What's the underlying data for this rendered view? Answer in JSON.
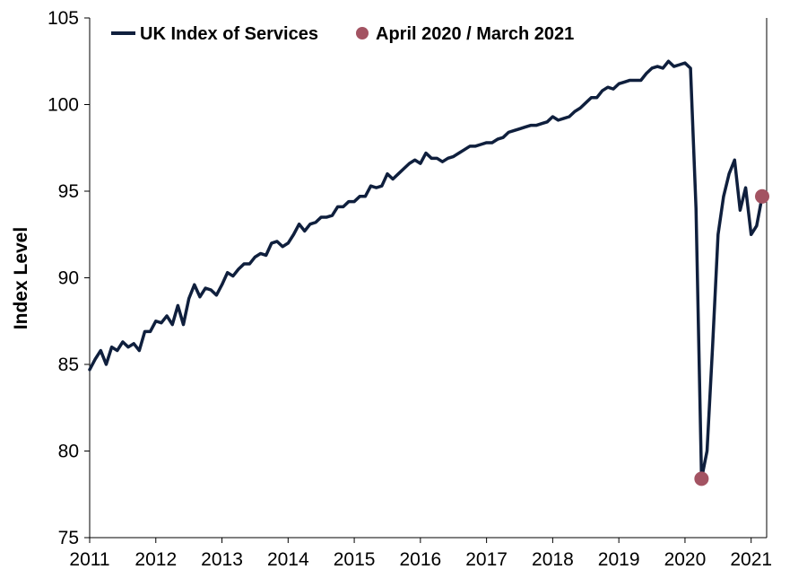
{
  "chart_data": {
    "type": "line",
    "title": "",
    "xlabel": "",
    "ylabel": "Index Level",
    "ylim": [
      75,
      105
    ],
    "yticks": [
      "75",
      "80",
      "85",
      "90",
      "95",
      "100",
      "105"
    ],
    "xticks": [
      "2011",
      "2012",
      "2013",
      "2014",
      "2015",
      "2016",
      "2017",
      "2018",
      "2019",
      "2020",
      "2021"
    ],
    "xlim": [
      "2011-01",
      "2021-03"
    ],
    "grid": false,
    "legend_position": "top",
    "colors": {
      "line": "#0f1f3d",
      "marker": "#a35362",
      "axis": "#000000"
    },
    "series": [
      {
        "name": "UK Index of Services",
        "x": [
          "2011-01",
          "2011-02",
          "2011-03",
          "2011-04",
          "2011-05",
          "2011-06",
          "2011-07",
          "2011-08",
          "2011-09",
          "2011-10",
          "2011-11",
          "2011-12",
          "2012-01",
          "2012-02",
          "2012-03",
          "2012-04",
          "2012-05",
          "2012-06",
          "2012-07",
          "2012-08",
          "2012-09",
          "2012-10",
          "2012-11",
          "2012-12",
          "2013-01",
          "2013-02",
          "2013-03",
          "2013-04",
          "2013-05",
          "2013-06",
          "2013-07",
          "2013-08",
          "2013-09",
          "2013-10",
          "2013-11",
          "2013-12",
          "2014-01",
          "2014-02",
          "2014-03",
          "2014-04",
          "2014-05",
          "2014-06",
          "2014-07",
          "2014-08",
          "2014-09",
          "2014-10",
          "2014-11",
          "2014-12",
          "2015-01",
          "2015-02",
          "2015-03",
          "2015-04",
          "2015-05",
          "2015-06",
          "2015-07",
          "2015-08",
          "2015-09",
          "2015-10",
          "2015-11",
          "2015-12",
          "2016-01",
          "2016-02",
          "2016-03",
          "2016-04",
          "2016-05",
          "2016-06",
          "2016-07",
          "2016-08",
          "2016-09",
          "2016-10",
          "2016-11",
          "2016-12",
          "2017-01",
          "2017-02",
          "2017-03",
          "2017-04",
          "2017-05",
          "2017-06",
          "2017-07",
          "2017-08",
          "2017-09",
          "2017-10",
          "2017-11",
          "2017-12",
          "2018-01",
          "2018-02",
          "2018-03",
          "2018-04",
          "2018-05",
          "2018-06",
          "2018-07",
          "2018-08",
          "2018-09",
          "2018-10",
          "2018-11",
          "2018-12",
          "2019-01",
          "2019-02",
          "2019-03",
          "2019-04",
          "2019-05",
          "2019-06",
          "2019-07",
          "2019-08",
          "2019-09",
          "2019-10",
          "2019-11",
          "2019-12",
          "2020-01",
          "2020-02",
          "2020-03",
          "2020-04",
          "2020-05",
          "2020-06",
          "2020-07",
          "2020-08",
          "2020-09",
          "2020-10",
          "2020-11",
          "2020-12",
          "2021-01",
          "2021-02",
          "2021-03"
        ],
        "values": [
          84.7,
          85.3,
          85.8,
          85.0,
          86.0,
          85.8,
          86.3,
          86.0,
          86.2,
          85.8,
          86.9,
          86.9,
          87.5,
          87.4,
          87.8,
          87.3,
          88.4,
          87.3,
          88.8,
          89.6,
          88.9,
          89.4,
          89.3,
          89.0,
          89.6,
          90.3,
          90.1,
          90.5,
          90.8,
          90.8,
          91.2,
          91.4,
          91.3,
          92.0,
          92.1,
          91.8,
          92.0,
          92.5,
          93.1,
          92.7,
          93.1,
          93.2,
          93.5,
          93.5,
          93.6,
          94.1,
          94.1,
          94.4,
          94.4,
          94.7,
          94.7,
          95.3,
          95.2,
          95.3,
          96.0,
          95.7,
          96.0,
          96.3,
          96.6,
          96.8,
          96.6,
          97.2,
          96.9,
          96.9,
          96.7,
          96.9,
          97.0,
          97.2,
          97.4,
          97.6,
          97.6,
          97.7,
          97.8,
          97.8,
          98.0,
          98.1,
          98.4,
          98.5,
          98.6,
          98.7,
          98.8,
          98.8,
          98.9,
          99.0,
          99.3,
          99.1,
          99.2,
          99.3,
          99.6,
          99.8,
          100.1,
          100.4,
          100.4,
          100.8,
          101.0,
          100.9,
          101.2,
          101.3,
          101.4,
          101.4,
          101.4,
          101.8,
          102.1,
          102.2,
          102.1,
          102.5,
          102.2,
          102.3,
          102.4,
          102.1,
          94.0,
          78.4,
          80.0,
          86.0,
          92.5,
          94.7,
          96.0,
          96.8,
          93.9,
          95.2,
          92.5,
          93.0,
          94.7
        ]
      },
      {
        "name": "April 2020 / March 2021",
        "x": [
          "2020-04",
          "2021-03"
        ],
        "values": [
          78.4,
          94.7
        ]
      }
    ]
  }
}
